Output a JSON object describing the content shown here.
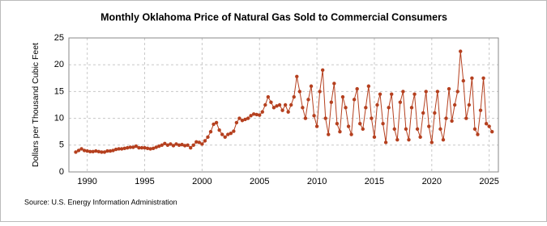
{
  "chart_data": {
    "type": "line",
    "title": "Monthly Oklahoma Price of Natural Gas Sold to Commercial Consumers",
    "y_label": "Dollars per Thousand Cubic Feet",
    "source": "Source: U.S. Energy Information Administration",
    "x": [
      1989,
      1989.25,
      1989.5,
      1989.75,
      1990,
      1990.25,
      1990.5,
      1990.75,
      1991,
      1991.25,
      1991.5,
      1991.75,
      1992,
      1992.25,
      1992.5,
      1992.75,
      1993,
      1993.25,
      1993.5,
      1993.75,
      1994,
      1994.25,
      1994.5,
      1994.75,
      1995,
      1995.25,
      1995.5,
      1995.75,
      1996,
      1996.25,
      1996.5,
      1996.75,
      1997,
      1997.25,
      1997.5,
      1997.75,
      1998,
      1998.25,
      1998.5,
      1998.75,
      1999,
      1999.25,
      1999.5,
      1999.75,
      2000,
      2000.25,
      2000.5,
      2000.75,
      2001,
      2001.25,
      2001.5,
      2001.75,
      2002,
      2002.25,
      2002.5,
      2002.75,
      2003,
      2003.25,
      2003.5,
      2003.75,
      2004,
      2004.25,
      2004.5,
      2004.75,
      2005,
      2005.25,
      2005.5,
      2005.75,
      2006,
      2006.25,
      2006.5,
      2006.75,
      2007,
      2007.25,
      2007.5,
      2007.75,
      2008,
      2008.25,
      2008.5,
      2008.75,
      2009,
      2009.25,
      2009.5,
      2009.75,
      2010,
      2010.25,
      2010.5,
      2010.75,
      2011,
      2011.25,
      2011.5,
      2011.75,
      2012,
      2012.25,
      2012.5,
      2012.75,
      2013,
      2013.25,
      2013.5,
      2013.75,
      2014,
      2014.25,
      2014.5,
      2014.75,
      2015,
      2015.25,
      2015.5,
      2015.75,
      2016,
      2016.25,
      2016.5,
      2016.75,
      2017,
      2017.25,
      2017.5,
      2017.75,
      2018,
      2018.25,
      2018.5,
      2018.75,
      2019,
      2019.25,
      2019.5,
      2019.75,
      2020,
      2020.25,
      2020.5,
      2020.75,
      2021,
      2021.25,
      2021.5,
      2021.75,
      2022,
      2022.25,
      2022.5,
      2022.75,
      2023,
      2023.25,
      2023.5,
      2023.75,
      2024,
      2024.25,
      2024.5,
      2024.75,
      2025,
      2025.25
    ],
    "series": [
      {
        "name": "Oklahoma",
        "color": "#b5401f",
        "values": [
          3.7,
          4.0,
          4.3,
          4.0,
          3.9,
          3.8,
          3.8,
          3.9,
          3.8,
          3.7,
          3.7,
          3.9,
          3.9,
          4.0,
          4.2,
          4.3,
          4.3,
          4.4,
          4.5,
          4.6,
          4.6,
          4.8,
          4.5,
          4.5,
          4.5,
          4.4,
          4.3,
          4.4,
          4.6,
          4.8,
          5.0,
          5.3,
          5.0,
          5.2,
          4.9,
          5.2,
          5.0,
          5.1,
          4.9,
          5.0,
          4.5,
          5.0,
          5.6,
          5.5,
          5.2,
          5.8,
          6.5,
          7.5,
          8.9,
          9.2,
          7.8,
          7.0,
          6.5,
          7.0,
          7.2,
          7.6,
          9.2,
          10.0,
          9.6,
          9.8,
          10.0,
          10.5,
          10.8,
          10.7,
          10.6,
          11.2,
          12.5,
          14.0,
          13.0,
          12.0,
          12.3,
          12.5,
          11.5,
          12.5,
          11.2,
          12.5,
          14.0,
          17.8,
          15.0,
          12.0,
          10.0,
          13.5,
          16.0,
          10.5,
          8.5,
          15.0,
          19.0,
          10.0,
          7.0,
          13.0,
          16.5,
          9.0,
          7.5,
          14.0,
          12.0,
          8.5,
          7.0,
          13.5,
          15.5,
          9.0,
          8.0,
          12.0,
          16.0,
          10.0,
          6.5,
          12.5,
          14.5,
          9.0,
          5.5,
          12.0,
          14.5,
          8.0,
          6.0,
          13.0,
          15.0,
          8.0,
          6.0,
          12.0,
          14.5,
          8.0,
          6.5,
          11.0,
          15.0,
          8.5,
          5.5,
          11.0,
          15.0,
          8.0,
          6.0,
          10.0,
          15.5,
          9.5,
          12.5,
          15.0,
          22.5,
          17.0,
          10.0,
          12.5,
          17.5,
          8.0,
          7.0,
          11.5,
          17.5,
          9.0,
          8.5,
          7.5
        ]
      }
    ],
    "xlim": [
      1988.4,
      2025.8
    ],
    "xticks": [
      1990,
      1995,
      2000,
      2005,
      2010,
      2015,
      2020,
      2025
    ],
    "ylim": [
      0,
      25
    ],
    "yticks": [
      0,
      5,
      10,
      15,
      20,
      25
    ],
    "grid": true
  }
}
